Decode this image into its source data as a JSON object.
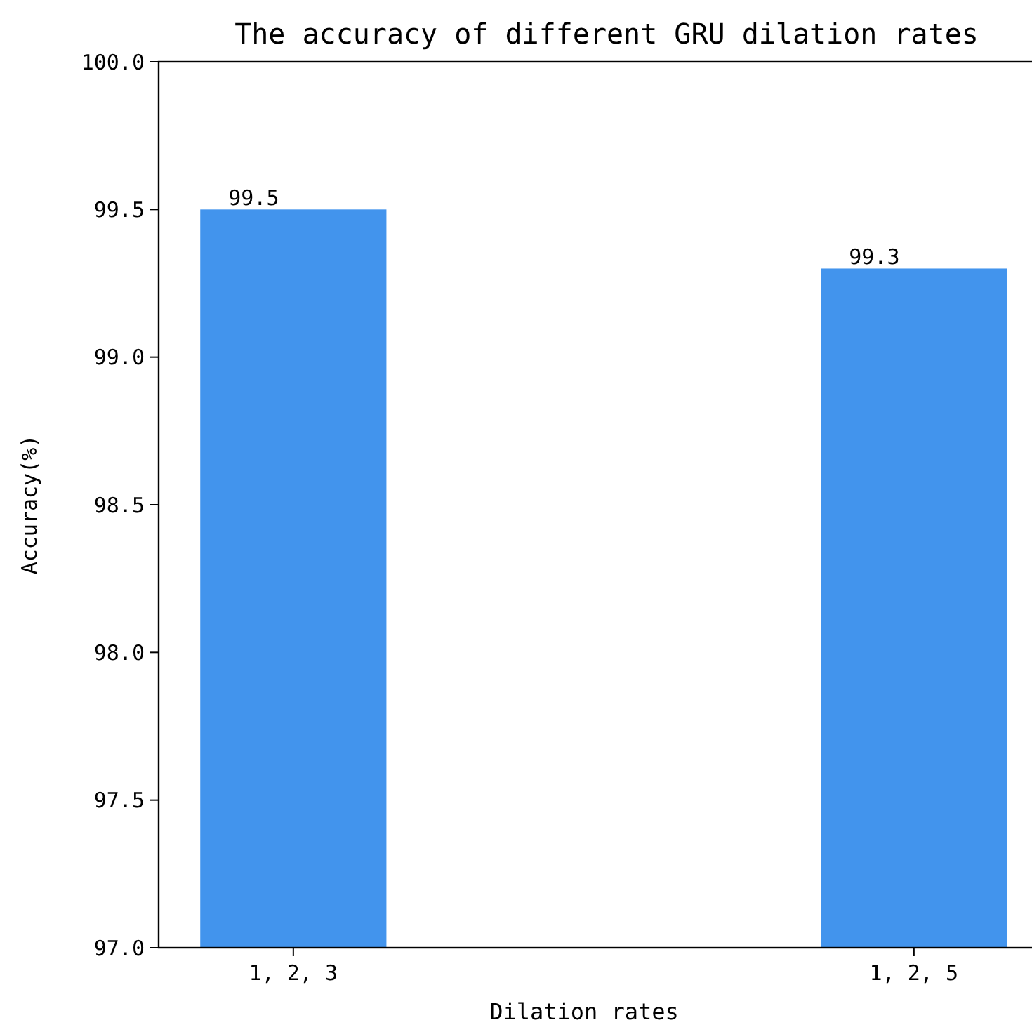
{
  "chart_data": {
    "type": "bar",
    "title": "The accuracy of different GRU dilation rates",
    "xlabel": "Dilation rates",
    "ylabel": "Accuracy(%)",
    "categories": [
      "1, 2, 3",
      "1, 2, 5"
    ],
    "values": [
      99.5,
      99.3
    ],
    "color": "#4294ed",
    "data_labels": true,
    "ylim": [
      97,
      100
    ],
    "yticks": [
      {
        "value": 97,
        "label": "97.0"
      },
      {
        "value": 97.5,
        "label": "97.5"
      },
      {
        "value": 98,
        "label": "98.0"
      },
      {
        "value": 98.5,
        "label": "98.5"
      },
      {
        "value": 99,
        "label": "99.0"
      },
      {
        "value": 99.5,
        "label": "99.5"
      },
      {
        "value": 100,
        "label": "100.0"
      }
    ],
    "grid": false
  }
}
